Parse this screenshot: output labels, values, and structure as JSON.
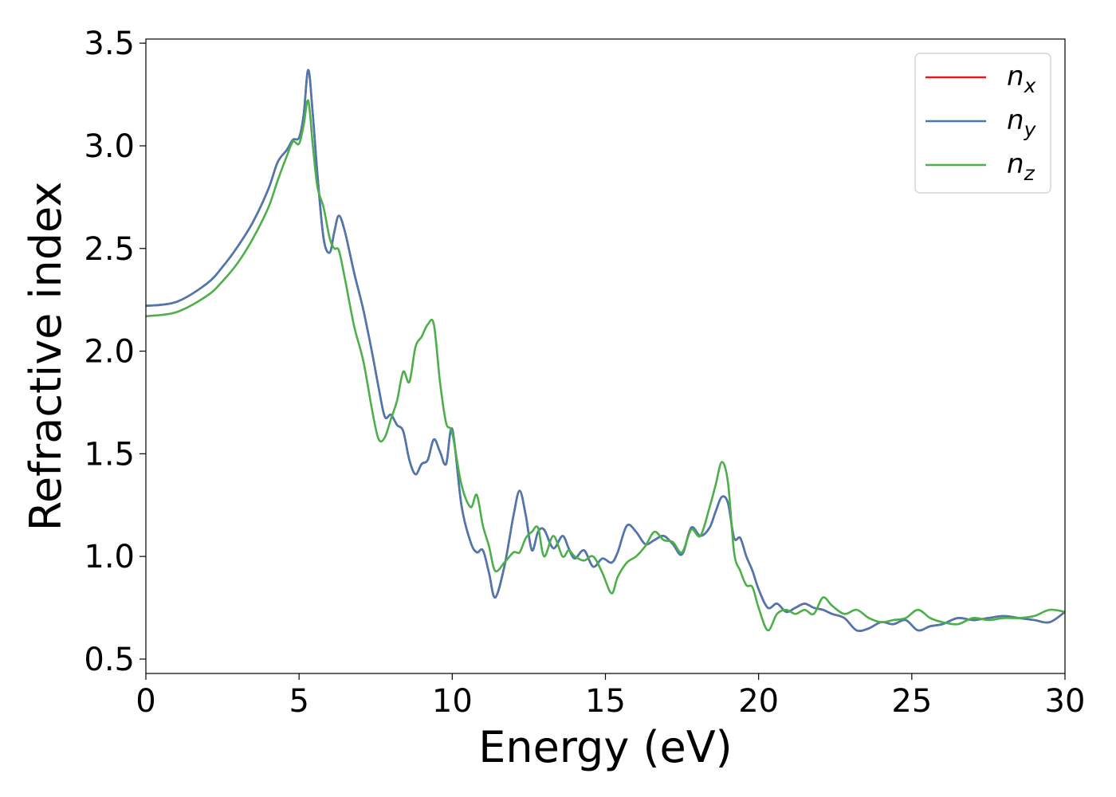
{
  "chart_data": {
    "type": "line",
    "xlabel": "Energy (eV)",
    "ylabel": "Refractive index",
    "xlim": [
      0,
      30
    ],
    "ylim": [
      0.43,
      3.52
    ],
    "xticks": [
      0,
      5,
      10,
      15,
      20,
      25,
      30
    ],
    "yticks": [
      0.5,
      1.0,
      1.5,
      2.0,
      2.5,
      3.0,
      3.5
    ],
    "xtick_labels": [
      "0",
      "5",
      "10",
      "15",
      "20",
      "25",
      "30"
    ],
    "ytick_labels": [
      "0.5",
      "1.0",
      "1.5",
      "2.0",
      "2.5",
      "3.0",
      "3.5"
    ],
    "grid": false,
    "legend_position": "top-right",
    "series": [
      {
        "name": "n_x",
        "label_base": "n",
        "label_sub": "x",
        "color": "#e41a1c",
        "x": [
          0,
          1,
          2,
          2.5,
          3,
          3.5,
          4,
          4.3,
          4.6,
          4.8,
          5.0,
          5.15,
          5.3,
          5.45,
          5.6,
          5.8,
          6.0,
          6.15,
          6.3,
          6.5,
          6.8,
          7.1,
          7.4,
          7.6,
          7.8,
          8.0,
          8.2,
          8.4,
          8.6,
          8.8,
          9.0,
          9.2,
          9.4,
          9.6,
          9.8,
          10.0,
          10.3,
          10.6,
          10.8,
          11.0,
          11.2,
          11.4,
          11.7,
          12.0,
          12.2,
          12.4,
          12.6,
          12.8,
          13.0,
          13.3,
          13.6,
          13.8,
          14.0,
          14.3,
          14.6,
          14.9,
          15.2,
          15.4,
          15.7,
          16.0,
          16.3,
          16.6,
          16.9,
          17.2,
          17.5,
          17.8,
          18.1,
          18.4,
          18.6,
          18.8,
          19.0,
          19.2,
          19.4,
          19.6,
          19.8,
          20.0,
          20.3,
          20.6,
          20.9,
          21.2,
          21.5,
          21.8,
          22.1,
          22.4,
          22.8,
          23.2,
          23.6,
          24.0,
          24.4,
          24.8,
          25.2,
          25.6,
          26.0,
          26.5,
          27.0,
          27.5,
          28.0,
          28.5,
          29.0,
          29.5,
          30.0
        ],
        "y": [
          2.22,
          2.24,
          2.33,
          2.41,
          2.51,
          2.63,
          2.79,
          2.92,
          2.98,
          3.03,
          3.04,
          3.15,
          3.37,
          3.15,
          2.86,
          2.55,
          2.48,
          2.58,
          2.66,
          2.58,
          2.38,
          2.2,
          1.98,
          1.82,
          1.68,
          1.69,
          1.64,
          1.61,
          1.47,
          1.4,
          1.45,
          1.47,
          1.57,
          1.51,
          1.45,
          1.62,
          1.25,
          1.07,
          1.02,
          1.03,
          0.92,
          0.8,
          0.95,
          1.2,
          1.32,
          1.2,
          1.03,
          1.12,
          1.13,
          1.04,
          1.1,
          1.04,
          0.99,
          1.03,
          0.95,
          0.99,
          0.97,
          1.02,
          1.15,
          1.12,
          1.06,
          1.08,
          1.1,
          1.06,
          1.01,
          1.14,
          1.1,
          1.14,
          1.22,
          1.29,
          1.26,
          1.09,
          1.09,
          1.0,
          0.93,
          0.84,
          0.75,
          0.77,
          0.73,
          0.75,
          0.77,
          0.75,
          0.74,
          0.72,
          0.7,
          0.64,
          0.65,
          0.68,
          0.67,
          0.69,
          0.64,
          0.66,
          0.67,
          0.7,
          0.69,
          0.7,
          0.71,
          0.7,
          0.69,
          0.68,
          0.73
        ]
      },
      {
        "name": "n_y",
        "label_base": "n",
        "label_sub": "y",
        "color": "#4a78b0",
        "x": [
          0,
          1,
          2,
          2.5,
          3,
          3.5,
          4,
          4.3,
          4.6,
          4.8,
          5.0,
          5.15,
          5.3,
          5.45,
          5.6,
          5.8,
          6.0,
          6.15,
          6.3,
          6.5,
          6.8,
          7.1,
          7.4,
          7.6,
          7.8,
          8.0,
          8.2,
          8.4,
          8.6,
          8.8,
          9.0,
          9.2,
          9.4,
          9.6,
          9.8,
          10.0,
          10.3,
          10.6,
          10.8,
          11.0,
          11.2,
          11.4,
          11.7,
          12.0,
          12.2,
          12.4,
          12.6,
          12.8,
          13.0,
          13.3,
          13.6,
          13.8,
          14.0,
          14.3,
          14.6,
          14.9,
          15.2,
          15.4,
          15.7,
          16.0,
          16.3,
          16.6,
          16.9,
          17.2,
          17.5,
          17.8,
          18.1,
          18.4,
          18.6,
          18.8,
          19.0,
          19.2,
          19.4,
          19.6,
          19.8,
          20.0,
          20.3,
          20.6,
          20.9,
          21.2,
          21.5,
          21.8,
          22.1,
          22.4,
          22.8,
          23.2,
          23.6,
          24.0,
          24.4,
          24.8,
          25.2,
          25.6,
          26.0,
          26.5,
          27.0,
          27.5,
          28.0,
          28.5,
          29.0,
          29.5,
          30.0
        ],
        "y": [
          2.22,
          2.24,
          2.33,
          2.41,
          2.51,
          2.63,
          2.79,
          2.92,
          2.98,
          3.03,
          3.04,
          3.15,
          3.37,
          3.15,
          2.86,
          2.55,
          2.48,
          2.58,
          2.66,
          2.58,
          2.38,
          2.2,
          1.98,
          1.82,
          1.68,
          1.69,
          1.64,
          1.61,
          1.47,
          1.4,
          1.45,
          1.47,
          1.57,
          1.51,
          1.45,
          1.62,
          1.25,
          1.07,
          1.02,
          1.03,
          0.92,
          0.8,
          0.95,
          1.2,
          1.32,
          1.2,
          1.03,
          1.12,
          1.13,
          1.04,
          1.1,
          1.04,
          0.99,
          1.03,
          0.95,
          0.99,
          0.97,
          1.02,
          1.15,
          1.12,
          1.06,
          1.08,
          1.1,
          1.06,
          1.01,
          1.14,
          1.1,
          1.14,
          1.22,
          1.29,
          1.26,
          1.09,
          1.09,
          1.0,
          0.93,
          0.84,
          0.75,
          0.77,
          0.73,
          0.75,
          0.77,
          0.75,
          0.74,
          0.72,
          0.7,
          0.64,
          0.65,
          0.68,
          0.67,
          0.69,
          0.64,
          0.66,
          0.67,
          0.7,
          0.69,
          0.7,
          0.71,
          0.7,
          0.69,
          0.68,
          0.73
        ]
      },
      {
        "name": "n_z",
        "label_base": "n",
        "label_sub": "z",
        "color": "#4daf4a",
        "x": [
          0,
          1,
          2,
          2.5,
          3,
          3.5,
          4,
          4.3,
          4.6,
          4.8,
          5.0,
          5.15,
          5.3,
          5.45,
          5.6,
          5.8,
          6.0,
          6.15,
          6.3,
          6.5,
          6.8,
          7.1,
          7.4,
          7.6,
          7.8,
          8.0,
          8.2,
          8.4,
          8.6,
          8.8,
          9.0,
          9.2,
          9.4,
          9.6,
          9.8,
          10.0,
          10.3,
          10.6,
          10.8,
          11.0,
          11.2,
          11.4,
          11.7,
          12.0,
          12.2,
          12.4,
          12.6,
          12.8,
          13.0,
          13.3,
          13.6,
          13.8,
          14.0,
          14.3,
          14.6,
          14.9,
          15.2,
          15.4,
          15.7,
          16.0,
          16.3,
          16.6,
          16.9,
          17.2,
          17.5,
          17.8,
          18.1,
          18.4,
          18.6,
          18.8,
          19.0,
          19.2,
          19.4,
          19.6,
          19.8,
          20.0,
          20.3,
          20.6,
          20.9,
          21.2,
          21.5,
          21.8,
          22.1,
          22.4,
          22.8,
          23.2,
          23.6,
          24.0,
          24.4,
          24.8,
          25.2,
          25.6,
          26.0,
          26.5,
          27.0,
          27.5,
          28.0,
          28.5,
          29.0,
          29.5,
          30.0
        ],
        "y": [
          2.17,
          2.19,
          2.27,
          2.34,
          2.43,
          2.55,
          2.7,
          2.83,
          2.95,
          3.02,
          3.01,
          3.1,
          3.22,
          3.0,
          2.8,
          2.7,
          2.55,
          2.5,
          2.49,
          2.35,
          2.12,
          1.95,
          1.7,
          1.57,
          1.58,
          1.67,
          1.76,
          1.9,
          1.85,
          2.02,
          2.07,
          2.13,
          2.13,
          1.85,
          1.65,
          1.6,
          1.35,
          1.24,
          1.3,
          1.15,
          1.05,
          0.93,
          0.97,
          1.02,
          1.02,
          1.09,
          1.12,
          1.14,
          1.0,
          1.1,
          1.0,
          1.03,
          1.0,
          0.98,
          1.0,
          0.92,
          0.82,
          0.9,
          0.97,
          1.0,
          1.05,
          1.12,
          1.08,
          1.07,
          1.02,
          1.13,
          1.1,
          1.24,
          1.35,
          1.46,
          1.36,
          1.02,
          0.93,
          0.86,
          0.85,
          0.75,
          0.64,
          0.72,
          0.74,
          0.72,
          0.74,
          0.72,
          0.8,
          0.76,
          0.72,
          0.74,
          0.7,
          0.68,
          0.69,
          0.7,
          0.74,
          0.7,
          0.68,
          0.67,
          0.7,
          0.69,
          0.7,
          0.7,
          0.71,
          0.74,
          0.73
        ]
      }
    ]
  }
}
